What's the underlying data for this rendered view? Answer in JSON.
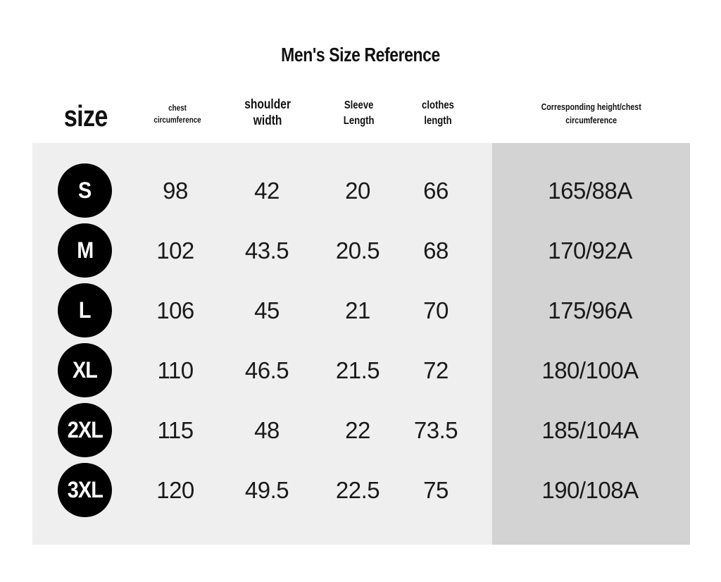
{
  "title": "Men's Size Reference",
  "headers": {
    "size": "size",
    "chest_line1": "chest",
    "chest_line2": "circumference",
    "shoulder_line1": "shoulder",
    "shoulder_line2": "width",
    "sleeve_line1": "Sleeve",
    "sleeve_line2": "Length",
    "length_line1": "clothes",
    "length_line2": "length",
    "corr_line1": "Corresponding height/chest",
    "corr_line2": "circumference"
  },
  "rows": [
    {
      "size": "S",
      "chest": "98",
      "shoulder": "42",
      "sleeve": "20",
      "length": "66",
      "corr": "165/88A"
    },
    {
      "size": "M",
      "chest": "102",
      "shoulder": "43.5",
      "sleeve": "20.5",
      "length": "68",
      "corr": "170/92A"
    },
    {
      "size": "L",
      "chest": "106",
      "shoulder": "45",
      "sleeve": "21",
      "length": "70",
      "corr": "175/96A"
    },
    {
      "size": "XL",
      "chest": "110",
      "shoulder": "46.5",
      "sleeve": "21.5",
      "length": "72",
      "corr": "180/100A"
    },
    {
      "size": "2XL",
      "chest": "115",
      "shoulder": "48",
      "sleeve": "22",
      "length": "73.5",
      "corr": "185/104A"
    },
    {
      "size": "3XL",
      "chest": "120",
      "shoulder": "49.5",
      "sleeve": "22.5",
      "length": "75",
      "corr": "190/108A"
    }
  ],
  "colors": {
    "badge": "#000000",
    "panel_left": "#efefef",
    "panel_right": "#d3d3d3"
  }
}
